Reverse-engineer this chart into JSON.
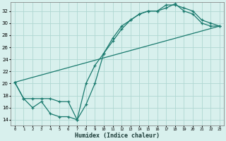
{
  "xlabel": "Humidex (Indice chaleur)",
  "bg_color": "#d8f0ed",
  "grid_color": "#b0d8d2",
  "line_color": "#1a7a6e",
  "xlim": [
    -0.5,
    23.5
  ],
  "ylim": [
    13,
    33.5
  ],
  "xticks": [
    0,
    1,
    2,
    3,
    4,
    5,
    6,
    7,
    8,
    9,
    10,
    11,
    12,
    13,
    14,
    15,
    16,
    17,
    18,
    19,
    20,
    21,
    22,
    23
  ],
  "yticks": [
    14,
    16,
    18,
    20,
    22,
    24,
    26,
    28,
    30,
    32
  ],
  "line1_x": [
    0,
    1,
    2,
    3,
    4,
    5,
    6,
    7,
    8,
    9,
    10,
    11,
    12,
    13,
    14,
    15,
    16,
    17,
    18,
    19,
    20,
    21,
    22,
    23
  ],
  "line1_y": [
    20.2,
    17.5,
    16.0,
    17.0,
    15.0,
    14.5,
    14.5,
    14.0,
    16.5,
    20.0,
    25.0,
    27.0,
    29.0,
    30.5,
    31.5,
    32.0,
    32.0,
    32.5,
    33.2,
    32.0,
    31.5,
    30.0,
    29.5,
    29.5
  ],
  "line2_x": [
    0,
    1,
    2,
    3,
    4,
    5,
    6,
    7,
    8,
    9,
    10,
    11,
    12,
    13,
    14,
    15,
    16,
    17,
    18,
    19,
    20,
    21,
    22,
    23
  ],
  "line2_y": [
    20.2,
    17.5,
    17.5,
    17.5,
    17.5,
    17.0,
    17.0,
    14.0,
    20.0,
    23.0,
    25.0,
    27.5,
    29.5,
    30.5,
    31.5,
    32.0,
    32.0,
    33.0,
    33.0,
    32.5,
    32.0,
    30.5,
    30.0,
    29.5
  ],
  "line3_x": [
    0,
    23
  ],
  "line3_y": [
    20.2,
    29.5
  ]
}
